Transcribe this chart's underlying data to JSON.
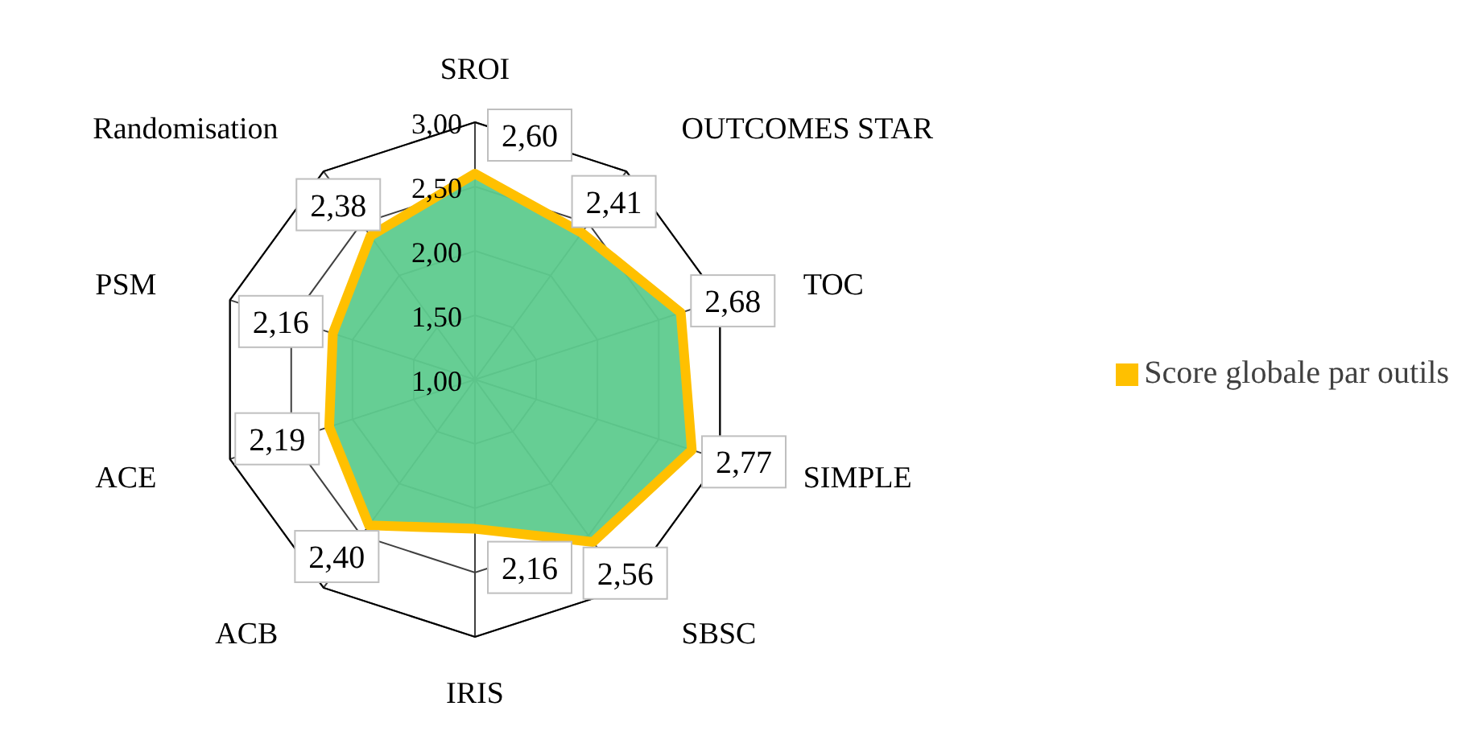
{
  "chart_data": {
    "type": "radar",
    "categories": [
      "SROI",
      "OUTCOMES STAR",
      "TOC",
      "SIMPLE",
      "SBSC",
      "IRIS",
      "ACB",
      "ACE",
      "PSM",
      "Randomisation"
    ],
    "series": [
      {
        "name": "Score globale par outils",
        "color": "#ffc000",
        "values": [
          2.6,
          2.41,
          2.68,
          2.77,
          2.56,
          2.16,
          2.4,
          2.19,
          2.16,
          2.38
        ],
        "value_labels": [
          "2,60",
          "2,41",
          "2,68",
          "2,77",
          "2,56",
          "2,16",
          "2,40",
          "2,19",
          "2,16",
          "2,38"
        ]
      }
    ],
    "ylim": [
      1,
      3
    ],
    "yticks": [
      {
        "value": 1,
        "label": "1,00"
      },
      {
        "value": 1.5,
        "label": "1,50"
      },
      {
        "value": 2,
        "label": "2,00"
      },
      {
        "value": 2.5,
        "label": "2,50"
      },
      {
        "value": 3,
        "label": "3,00"
      }
    ],
    "grid": true,
    "legend": "right"
  }
}
